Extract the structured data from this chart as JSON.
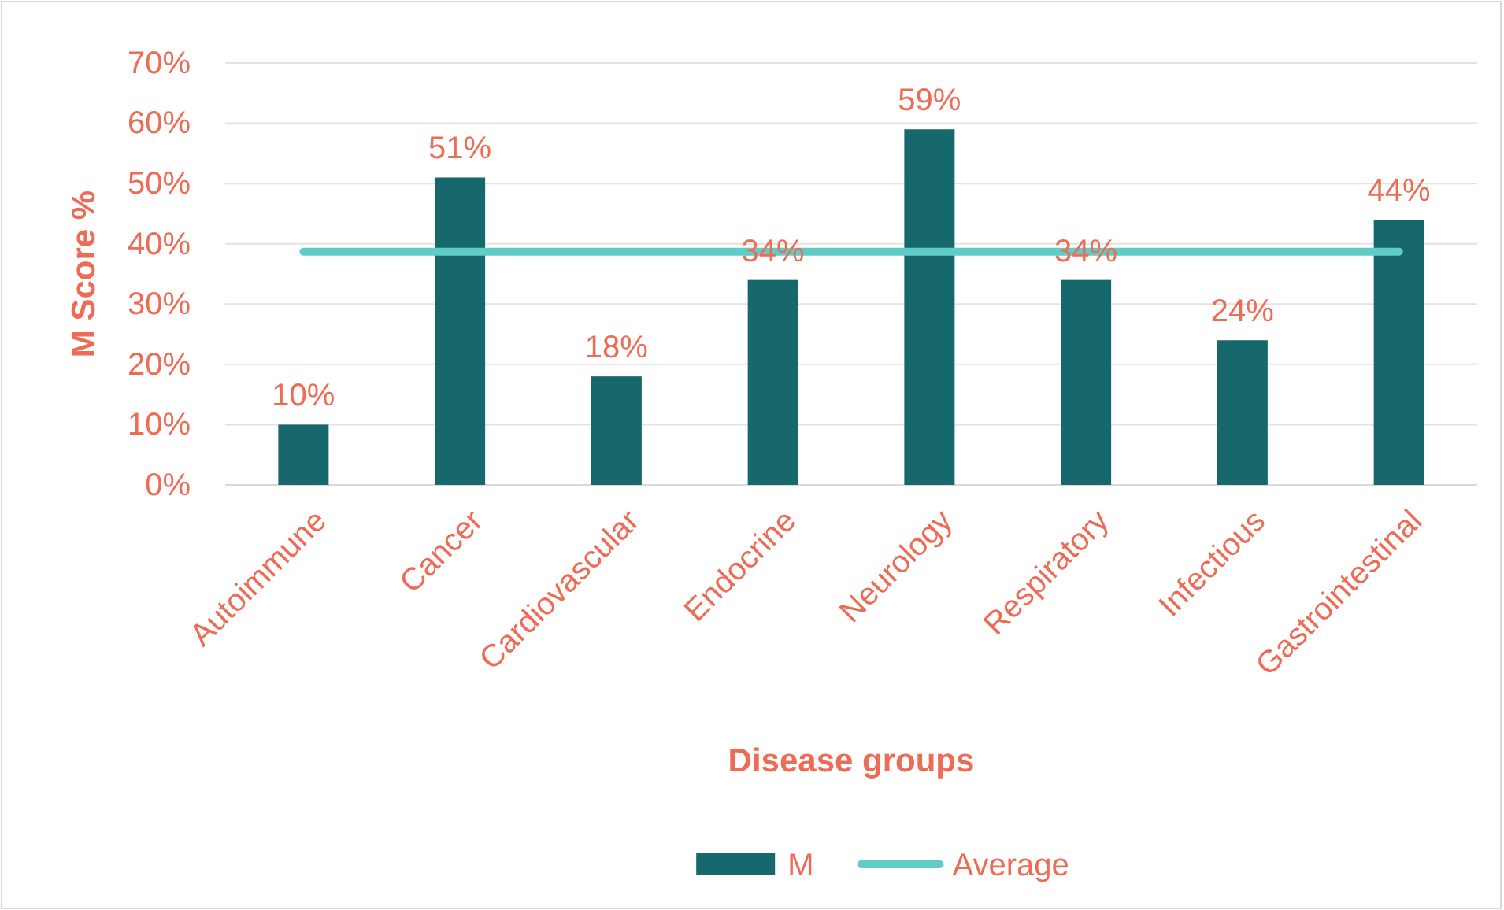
{
  "chart_data": {
    "type": "bar",
    "xlabel": "Disease groups",
    "ylabel": "M Score %",
    "categories": [
      "Autoimmune",
      "Cancer",
      "Cardiovascular",
      "Endocrine",
      "Neurology",
      "Respiratory",
      "Infectious",
      "Gastrointestinal"
    ],
    "series": [
      {
        "name": "M",
        "color": "#17686d",
        "values": [
          10,
          51,
          18,
          34,
          59,
          34,
          24,
          44
        ],
        "value_labels": [
          "10%",
          "51%",
          "18%",
          "34%",
          "59%",
          "34%",
          "24%",
          "44%"
        ]
      },
      {
        "name": "Average",
        "type": "line",
        "color": "#5fcdc6",
        "values": [
          38.7,
          38.7,
          38.7,
          38.7,
          38.7,
          38.7,
          38.7,
          38.7
        ]
      }
    ],
    "ylim": [
      0,
      70
    ],
    "yticks": [
      {
        "value": 0,
        "label": "0%"
      },
      {
        "value": 10,
        "label": "10%"
      },
      {
        "value": 20,
        "label": "20%"
      },
      {
        "value": 30,
        "label": "30%"
      },
      {
        "value": 40,
        "label": "40%"
      },
      {
        "value": 50,
        "label": "50%"
      },
      {
        "value": 60,
        "label": "60%"
      },
      {
        "value": 70,
        "label": "70%"
      }
    ],
    "grid": "y",
    "legend": "bottom"
  }
}
